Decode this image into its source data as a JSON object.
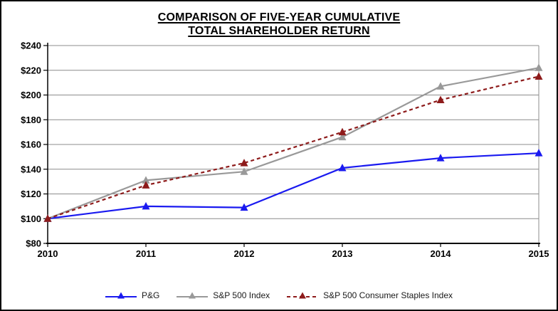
{
  "chart_data": {
    "type": "line",
    "title_line1": "COMPARISON OF FIVE-YEAR CUMULATIVE",
    "title_line2": "TOTAL SHAREHOLDER RETURN",
    "x_categories": [
      "2010",
      "2011",
      "2012",
      "2013",
      "2014",
      "2015"
    ],
    "y_axis": {
      "min": 80,
      "max": 240,
      "step": 20,
      "tick_prefix": "$",
      "tick_labels": [
        "$80",
        "$100",
        "$120",
        "$140",
        "$160",
        "$180",
        "$200",
        "$220",
        "$240"
      ]
    },
    "grid": true,
    "legend_position": "bottom",
    "series": [
      {
        "name": "P&G",
        "color": "#1A1AF0",
        "line_style": "solid",
        "marker": "triangle-up",
        "values": [
          100,
          110,
          109,
          141,
          149,
          153
        ]
      },
      {
        "name": "S&P 500 Index",
        "color": "#999999",
        "line_style": "solid",
        "marker": "triangle-up",
        "values": [
          100,
          131,
          138,
          166,
          207,
          222
        ]
      },
      {
        "name": "S&P 500 Consumer Staples Index",
        "color": "#8E1B1B",
        "line_style": "dashed",
        "marker": "triangle-up",
        "values": [
          100,
          127,
          145,
          170,
          196,
          215
        ]
      }
    ]
  },
  "colors": {
    "grid": "#8C8C8C",
    "axis": "#000000",
    "background": "#FFFFFF",
    "border": "#000000"
  }
}
